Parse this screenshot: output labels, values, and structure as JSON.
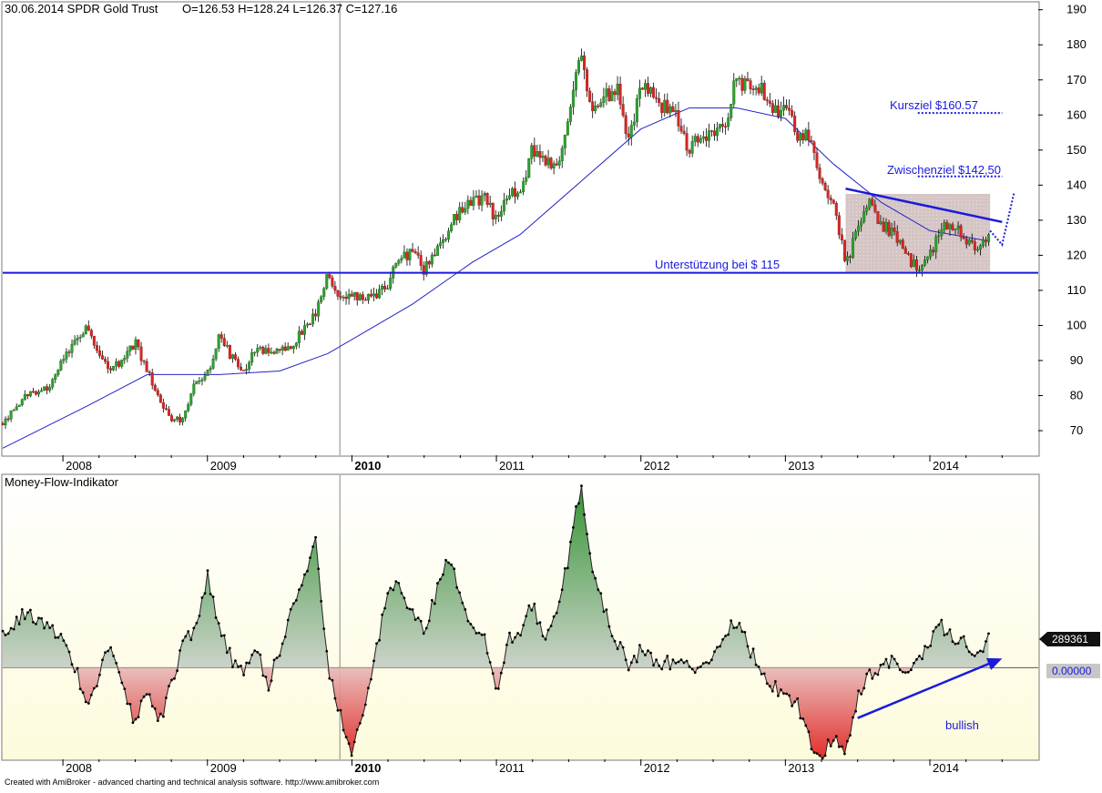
{
  "header": {
    "title": "30.06.2014 SPDR Gold Trust",
    "ohlc": "O=126.53  H=128.24  L=126.37  C=127.16"
  },
  "footer": {
    "credit": "Created with AmiBroker - advanced charting and technical analysis software. http://www.amibroker.com"
  },
  "colors": {
    "up": "#2fa02f",
    "down": "#d62626",
    "annotation": "#1a1adc",
    "ma": "#2323c8",
    "box": "#c9b7b7"
  },
  "chart_data": [
    {
      "type": "candlestick",
      "title": "30.06.2014 SPDR Gold Trust",
      "x_tick_labels": [
        "2008",
        "2009",
        "2010",
        "2011",
        "2012",
        "2013",
        "2014"
      ],
      "y_ticks": [
        70,
        80,
        90,
        100,
        110,
        120,
        130,
        140,
        150,
        160,
        170,
        180,
        190
      ],
      "ylim": [
        63,
        192
      ],
      "xlim": [
        "2007-08",
        "2014-10"
      ],
      "grid": false,
      "moving_average_label": "",
      "price_path": [
        [
          "2007-08",
          72
        ],
        [
          "2007-10",
          80
        ],
        [
          "2007-12",
          83
        ],
        [
          "2008-01",
          90
        ],
        [
          "2008-02",
          96
        ],
        [
          "2008-03",
          99
        ],
        [
          "2008-04",
          91
        ],
        [
          "2008-05",
          88
        ],
        [
          "2008-06",
          90
        ],
        [
          "2008-07",
          95
        ],
        [
          "2008-08",
          87
        ],
        [
          "2008-09",
          80
        ],
        [
          "2008-10",
          72
        ],
        [
          "2008-11",
          74
        ],
        [
          "2008-12",
          84
        ],
        [
          "2009-01",
          86
        ],
        [
          "2009-02",
          97
        ],
        [
          "2009-03",
          91
        ],
        [
          "2009-04",
          87
        ],
        [
          "2009-05",
          93
        ],
        [
          "2009-06",
          93
        ],
        [
          "2009-07",
          93
        ],
        [
          "2009-08",
          94
        ],
        [
          "2009-09",
          99
        ],
        [
          "2009-10",
          104
        ],
        [
          "2009-11",
          114
        ],
        [
          "2009-12",
          108
        ],
        [
          "2010-01",
          108
        ],
        [
          "2010-02",
          108
        ],
        [
          "2010-03",
          109
        ],
        [
          "2010-04",
          112
        ],
        [
          "2010-05",
          119
        ],
        [
          "2010-06",
          121
        ],
        [
          "2010-07",
          116
        ],
        [
          "2010-08",
          121
        ],
        [
          "2010-09",
          127
        ],
        [
          "2010-10",
          133
        ],
        [
          "2010-11",
          135
        ],
        [
          "2010-12",
          137
        ],
        [
          "2011-01",
          130
        ],
        [
          "2011-02",
          137
        ],
        [
          "2011-03",
          139
        ],
        [
          "2011-04",
          150
        ],
        [
          "2011-05",
          148
        ],
        [
          "2011-06",
          145
        ],
        [
          "2011-07",
          158
        ],
        [
          "2011-08",
          178
        ],
        [
          "2011-09",
          160
        ],
        [
          "2011-10",
          165
        ],
        [
          "2011-11",
          168
        ],
        [
          "2011-12",
          152
        ],
        [
          "2012-01",
          168
        ],
        [
          "2012-02",
          165
        ],
        [
          "2012-03",
          162
        ],
        [
          "2012-04",
          160
        ],
        [
          "2012-05",
          150
        ],
        [
          "2012-06",
          154
        ],
        [
          "2012-07",
          155
        ],
        [
          "2012-08",
          158
        ],
        [
          "2012-09",
          171
        ],
        [
          "2012-10",
          167
        ],
        [
          "2012-11",
          167
        ],
        [
          "2012-12",
          161
        ],
        [
          "2013-01",
          163
        ],
        [
          "2013-02",
          153
        ],
        [
          "2013-03",
          154
        ],
        [
          "2013-04",
          140
        ],
        [
          "2013-05",
          135
        ],
        [
          "2013-06",
          117
        ],
        [
          "2013-07",
          127
        ],
        [
          "2013-08",
          135
        ],
        [
          "2013-09",
          128
        ],
        [
          "2013-10",
          127
        ],
        [
          "2013-11",
          120
        ],
        [
          "2013-12",
          116
        ],
        [
          "2014-01",
          120
        ],
        [
          "2014-02",
          128
        ],
        [
          "2014-03",
          128
        ],
        [
          "2014-04",
          124
        ],
        [
          "2014-05",
          121
        ],
        [
          "2014-06",
          127
        ]
      ],
      "moving_average": [
        [
          "2007-08",
          65
        ],
        [
          "2008-03",
          77
        ],
        [
          "2008-08",
          86
        ],
        [
          "2009-02",
          86
        ],
        [
          "2009-07",
          87
        ],
        [
          "2009-11",
          92
        ],
        [
          "2010-02",
          98
        ],
        [
          "2010-06",
          106
        ],
        [
          "2010-11",
          118
        ],
        [
          "2011-03",
          126
        ],
        [
          "2011-08",
          141
        ],
        [
          "2012-01",
          156
        ],
        [
          "2012-05",
          162
        ],
        [
          "2012-09",
          162
        ],
        [
          "2013-01",
          159
        ],
        [
          "2013-05",
          146
        ],
        [
          "2013-09",
          135
        ],
        [
          "2014-01",
          127
        ],
        [
          "2014-06",
          124
        ]
      ],
      "annotations": [
        {
          "kind": "hline",
          "y": 115,
          "label": "Unterstützung bei $ 115"
        },
        {
          "kind": "dotted-target",
          "y": 160.57,
          "from": "2013-12",
          "to": "2014-07",
          "label": "Kursziel $160.57"
        },
        {
          "kind": "dotted-target",
          "y": 142.5,
          "from": "2013-12",
          "to": "2014-07",
          "label": "Zwischenziel $142,50"
        },
        {
          "kind": "trendline",
          "from": [
            "2013-06",
            139
          ],
          "to": [
            "2014-07",
            129.5
          ]
        },
        {
          "kind": "shaded-box",
          "x": [
            "2013-06",
            "2014-06"
          ],
          "y": [
            115,
            137.5
          ]
        },
        {
          "kind": "dotted-projection",
          "points": [
            [
              "2014-06",
              127
            ],
            [
              "2014-07",
              123
            ],
            [
              "2014-07",
              129
            ],
            [
              "2014-08",
              138
            ]
          ]
        },
        {
          "kind": "vline",
          "x": "2009-12"
        }
      ]
    },
    {
      "type": "area",
      "title": "Money-Flow-Indikator",
      "x_tick_labels": [
        "2008",
        "2009",
        "2010",
        "2011",
        "2012",
        "2013",
        "2014"
      ],
      "last_value": "289361",
      "zero_value": "0.00000",
      "ylim": [
        -100,
        210
      ],
      "series_path": [
        [
          "2007-08",
          40
        ],
        [
          "2007-10",
          60
        ],
        [
          "2007-12",
          45
        ],
        [
          "2008-01",
          30
        ],
        [
          "2008-02",
          0
        ],
        [
          "2008-03",
          -40
        ],
        [
          "2008-04",
          -10
        ],
        [
          "2008-05",
          30
        ],
        [
          "2008-06",
          -20
        ],
        [
          "2008-07",
          -60
        ],
        [
          "2008-08",
          -20
        ],
        [
          "2008-09",
          -60
        ],
        [
          "2008-10",
          -20
        ],
        [
          "2008-11",
          30
        ],
        [
          "2008-12",
          40
        ],
        [
          "2009-01",
          100
        ],
        [
          "2009-02",
          40
        ],
        [
          "2009-03",
          10
        ],
        [
          "2009-04",
          -10
        ],
        [
          "2009-05",
          25
        ],
        [
          "2009-06",
          -20
        ],
        [
          "2009-07",
          20
        ],
        [
          "2009-08",
          60
        ],
        [
          "2009-09",
          100
        ],
        [
          "2009-10",
          140
        ],
        [
          "2009-11",
          0
        ],
        [
          "2009-12",
          -50
        ],
        [
          "2010-01",
          -90
        ],
        [
          "2010-02",
          -50
        ],
        [
          "2010-03",
          20
        ],
        [
          "2010-04",
          80
        ],
        [
          "2010-05",
          90
        ],
        [
          "2010-06",
          60
        ],
        [
          "2010-07",
          40
        ],
        [
          "2010-08",
          80
        ],
        [
          "2010-09",
          120
        ],
        [
          "2010-10",
          80
        ],
        [
          "2010-11",
          40
        ],
        [
          "2010-12",
          30
        ],
        [
          "2011-01",
          -30
        ],
        [
          "2011-02",
          30
        ],
        [
          "2011-03",
          40
        ],
        [
          "2011-04",
          70
        ],
        [
          "2011-05",
          30
        ],
        [
          "2011-06",
          60
        ],
        [
          "2011-07",
          120
        ],
        [
          "2011-08",
          200
        ],
        [
          "2011-09",
          110
        ],
        [
          "2011-10",
          60
        ],
        [
          "2011-11",
          30
        ],
        [
          "2011-12",
          0
        ],
        [
          "2012-01",
          20
        ],
        [
          "2012-02",
          10
        ],
        [
          "2012-03",
          5
        ],
        [
          "2012-04",
          5
        ],
        [
          "2012-05",
          0
        ],
        [
          "2012-06",
          5
        ],
        [
          "2012-07",
          10
        ],
        [
          "2012-08",
          40
        ],
        [
          "2012-09",
          50
        ],
        [
          "2012-10",
          20
        ],
        [
          "2012-11",
          0
        ],
        [
          "2012-12",
          -20
        ],
        [
          "2013-01",
          -30
        ],
        [
          "2013-02",
          -40
        ],
        [
          "2013-03",
          -80
        ],
        [
          "2013-04",
          -100
        ],
        [
          "2013-05",
          -75
        ],
        [
          "2013-06",
          -95
        ],
        [
          "2013-07",
          -30
        ],
        [
          "2013-08",
          -10
        ],
        [
          "2013-09",
          5
        ],
        [
          "2013-10",
          5
        ],
        [
          "2013-11",
          -5
        ],
        [
          "2013-12",
          10
        ],
        [
          "2014-01",
          30
        ],
        [
          "2014-02",
          45
        ],
        [
          "2014-03",
          35
        ],
        [
          "2014-04",
          25
        ],
        [
          "2014-05",
          15
        ],
        [
          "2014-06",
          38
        ]
      ],
      "annotations": [
        {
          "kind": "arrow",
          "from": [
            "2013-07",
            -55
          ],
          "to": [
            "2014-07",
            10
          ],
          "label": "bullish"
        }
      ]
    }
  ]
}
